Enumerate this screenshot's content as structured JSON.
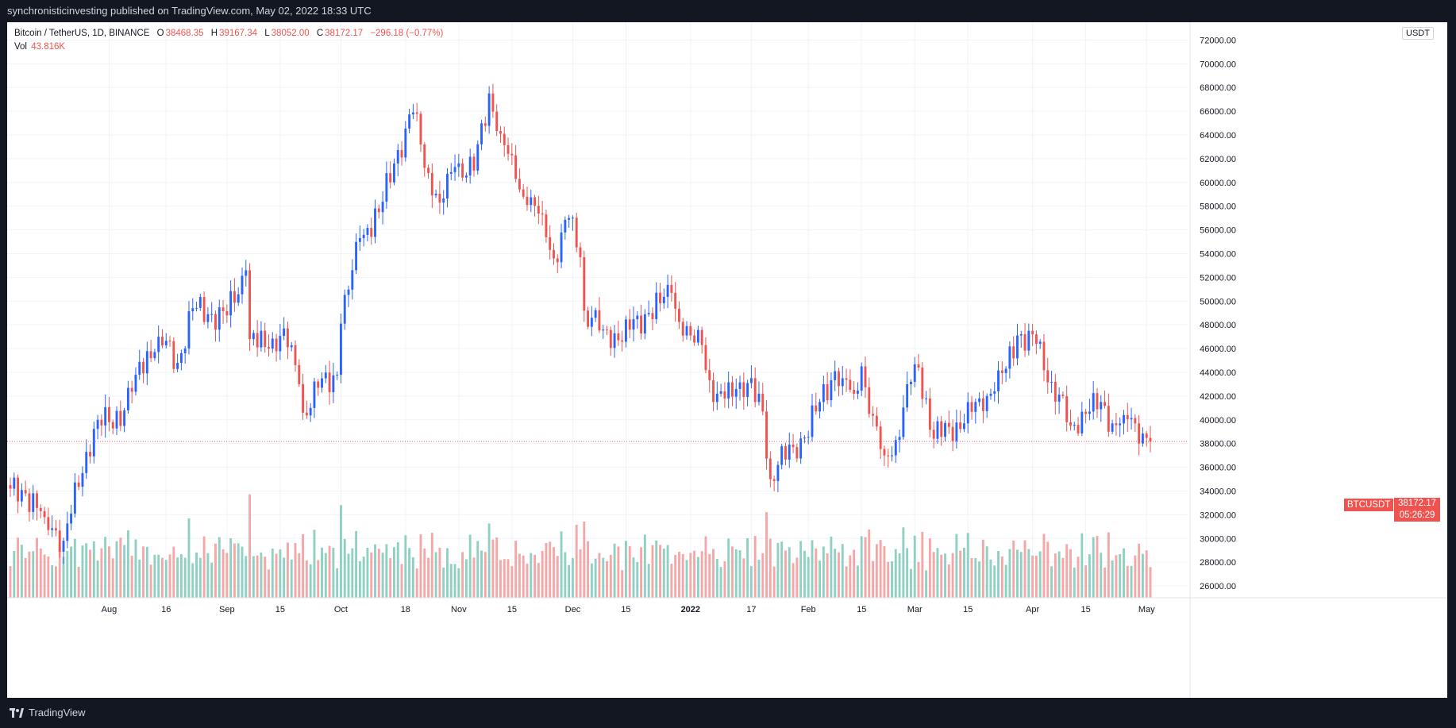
{
  "header": {
    "publisher_line": "synchronisticinvesting published on TradingView.com, May 02, 2022 18:33 UTC"
  },
  "footer": {
    "brand": "TradingView"
  },
  "legend": {
    "symbol": "Bitcoin / TetherUS, 1D, BINANCE",
    "open_label": "O",
    "open": "38468.35",
    "high_label": "H",
    "high": "39167.34",
    "low_label": "L",
    "low": "38052.00",
    "close_label": "C",
    "close": "38172.17",
    "change": "−296.18 (−0.77%)",
    "vol_label": "Vol",
    "vol": "43.816K"
  },
  "price_axis": {
    "currency": "USDT",
    "last_price": "38172.17",
    "countdown": "05:26:29",
    "symbol_tag": "BTCUSDT"
  },
  "colors": {
    "up": "#2962ff",
    "down": "#ef5350",
    "vol_up": "#8fd0c3",
    "vol_down": "#f5a7a7",
    "grid": "#f0f3fa",
    "axis_text": "#131722",
    "background": "#ffffff"
  },
  "chart_data": {
    "type": "candlestick",
    "title": "Bitcoin / TetherUS, 1D, BINANCE",
    "ylim": [
      25000,
      73500
    ],
    "y_ticks": [
      26000,
      28000,
      30000,
      32000,
      34000,
      36000,
      38000,
      40000,
      42000,
      44000,
      46000,
      48000,
      50000,
      52000,
      54000,
      56000,
      58000,
      60000,
      62000,
      64000,
      66000,
      68000,
      70000,
      72000
    ],
    "x_tick_labels": [
      {
        "date": "2021-08-01",
        "label": "Aug"
      },
      {
        "date": "2021-08-16",
        "label": "16"
      },
      {
        "date": "2021-09-01",
        "label": "Sep"
      },
      {
        "date": "2021-09-15",
        "label": "15"
      },
      {
        "date": "2021-10-01",
        "label": "Oct"
      },
      {
        "date": "2021-10-18",
        "label": "18"
      },
      {
        "date": "2021-11-01",
        "label": "Nov"
      },
      {
        "date": "2021-11-15",
        "label": "15"
      },
      {
        "date": "2021-12-01",
        "label": "Dec"
      },
      {
        "date": "2021-12-15",
        "label": "15"
      },
      {
        "date": "2022-01-01",
        "label": "2022"
      },
      {
        "date": "2022-01-17",
        "label": "17"
      },
      {
        "date": "2022-02-01",
        "label": "Feb"
      },
      {
        "date": "2022-02-15",
        "label": "15"
      },
      {
        "date": "2022-03-01",
        "label": "Mar"
      },
      {
        "date": "2022-03-15",
        "label": "15"
      },
      {
        "date": "2022-04-01",
        "label": "Apr"
      },
      {
        "date": "2022-04-15",
        "label": "15"
      },
      {
        "date": "2022-05-01",
        "label": "May"
      }
    ],
    "start_date": "2021-07-06",
    "end_date": "2022-05-02",
    "close_keypoints": [
      [
        "2021-07-06",
        34200
      ],
      [
        "2021-07-10",
        33800
      ],
      [
        "2021-07-15",
        31800
      ],
      [
        "2021-07-20",
        29800
      ],
      [
        "2021-07-22",
        32100
      ],
      [
        "2021-07-26",
        37300
      ],
      [
        "2021-07-29",
        40000
      ],
      [
        "2021-08-01",
        39800
      ],
      [
        "2021-08-05",
        40800
      ],
      [
        "2021-08-08",
        43800
      ],
      [
        "2021-08-14",
        47000
      ],
      [
        "2021-08-19",
        44800
      ],
      [
        "2021-08-23",
        49400
      ],
      [
        "2021-08-27",
        48900
      ],
      [
        "2021-09-01",
        48800
      ],
      [
        "2021-09-06",
        52600
      ],
      [
        "2021-09-07",
        46800
      ],
      [
        "2021-09-12",
        46000
      ],
      [
        "2021-09-16",
        47700
      ],
      [
        "2021-09-20",
        43000
      ],
      [
        "2021-09-21",
        40600
      ],
      [
        "2021-09-25",
        42700
      ],
      [
        "2021-09-30",
        43800
      ],
      [
        "2021-10-01",
        48100
      ],
      [
        "2021-10-06",
        55300
      ],
      [
        "2021-10-11",
        57500
      ],
      [
        "2021-10-15",
        61600
      ],
      [
        "2021-10-20",
        65900
      ],
      [
        "2021-10-24",
        60800
      ],
      [
        "2021-10-27",
        58300
      ],
      [
        "2021-10-31",
        61300
      ],
      [
        "2021-11-05",
        61000
      ],
      [
        "2021-11-09",
        67500
      ],
      [
        "2021-11-12",
        64100
      ],
      [
        "2021-11-16",
        60300
      ],
      [
        "2021-11-19",
        58100
      ],
      [
        "2021-11-23",
        57300
      ],
      [
        "2021-11-26",
        53600
      ],
      [
        "2021-11-30",
        57000
      ],
      [
        "2021-12-03",
        53700
      ],
      [
        "2021-12-04",
        49200
      ],
      [
        "2021-12-09",
        47600
      ],
      [
        "2021-12-13",
        46700
      ],
      [
        "2021-12-16",
        47600
      ],
      [
        "2021-12-21",
        49000
      ],
      [
        "2021-12-27",
        50700
      ],
      [
        "2021-12-30",
        47100
      ],
      [
        "2022-01-04",
        46300
      ],
      [
        "2022-01-07",
        41500
      ],
      [
        "2022-01-10",
        41800
      ],
      [
        "2022-01-13",
        42600
      ],
      [
        "2022-01-16",
        43100
      ],
      [
        "2022-01-20",
        40700
      ],
      [
        "2022-01-22",
        35000
      ],
      [
        "2022-01-24",
        36200
      ],
      [
        "2022-01-28",
        37700
      ],
      [
        "2022-01-31",
        38500
      ],
      [
        "2022-02-04",
        41500
      ],
      [
        "2022-02-08",
        44100
      ],
      [
        "2022-02-10",
        43500
      ],
      [
        "2022-02-13",
        42200
      ],
      [
        "2022-02-15",
        44500
      ],
      [
        "2022-02-17",
        40500
      ],
      [
        "2022-02-21",
        37000
      ],
      [
        "2022-02-24",
        38300
      ],
      [
        "2022-02-28",
        43200
      ],
      [
        "2022-03-02",
        44400
      ],
      [
        "2022-03-06",
        38400
      ],
      [
        "2022-03-10",
        39400
      ],
      [
        "2022-03-14",
        39700
      ],
      [
        "2022-03-18",
        41800
      ],
      [
        "2022-03-22",
        42400
      ],
      [
        "2022-03-25",
        44300
      ],
      [
        "2022-03-28",
        47100
      ],
      [
        "2022-04-02",
        46400
      ],
      [
        "2022-04-06",
        43200
      ],
      [
        "2022-04-11",
        39500
      ],
      [
        "2022-04-15",
        40500
      ],
      [
        "2022-04-19",
        41500
      ],
      [
        "2022-04-22",
        39700
      ],
      [
        "2022-04-25",
        40400
      ],
      [
        "2022-04-28",
        39700
      ],
      [
        "2022-05-01",
        38470
      ],
      [
        "2022-05-02",
        38172
      ]
    ],
    "volume_ylim_price_units": [
      25000,
      36000
    ]
  }
}
